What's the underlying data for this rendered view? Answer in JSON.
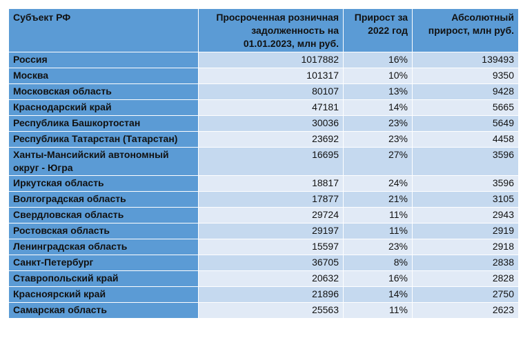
{
  "headers": {
    "region": "Субъект РФ",
    "debt": "Просроченная розничная задолженность на 01.01.2023, млн руб.",
    "growth_pct": "Прирост за 2022 год",
    "growth_abs": "Абсолютный прирост, млн руб."
  },
  "rows": [
    {
      "region": "Россия",
      "debt": "1017882",
      "growth_pct": "16%",
      "growth_abs": "139493"
    },
    {
      "region": "Москва",
      "debt": "101317",
      "growth_pct": "10%",
      "growth_abs": "9350"
    },
    {
      "region": "Московская область",
      "debt": "80107",
      "growth_pct": "13%",
      "growth_abs": "9428"
    },
    {
      "region": "Краснодарский край",
      "debt": "47181",
      "growth_pct": "14%",
      "growth_abs": "5665"
    },
    {
      "region": "Республика Башкортостан",
      "debt": "30036",
      "growth_pct": "23%",
      "growth_abs": "5649"
    },
    {
      "region": "Республика Татарстан  (Татарстан)",
      "debt": "23692",
      "growth_pct": "23%",
      "growth_abs": "4458"
    },
    {
      "region": "Ханты-Мансийский автономный округ - Югра",
      "debt": "16695",
      "growth_pct": "27%",
      "growth_abs": "3596"
    },
    {
      "region": "Иркутская область",
      "debt": "18817",
      "growth_pct": "24%",
      "growth_abs": "3596"
    },
    {
      "region": "Волгоградская область",
      "debt": "17877",
      "growth_pct": "21%",
      "growth_abs": "3105"
    },
    {
      "region": "Свердловская область",
      "debt": "29724",
      "growth_pct": "11%",
      "growth_abs": "2943"
    },
    {
      "region": "Ростовская область",
      "debt": "29197",
      "growth_pct": "11%",
      "growth_abs": "2919"
    },
    {
      "region": "Ленинградская область",
      "debt": "15597",
      "growth_pct": "23%",
      "growth_abs": "2918"
    },
    {
      "region": "Санкт-Петербург",
      "debt": "36705",
      "growth_pct": "8%",
      "growth_abs": "2838"
    },
    {
      "region": "Ставропольский край",
      "debt": "20632",
      "growth_pct": "16%",
      "growth_abs": "2828"
    },
    {
      "region": "Красноярский край",
      "debt": "21896",
      "growth_pct": "14%",
      "growth_abs": "2750"
    },
    {
      "region": "Самарская область",
      "debt": "25563",
      "growth_pct": "11%",
      "growth_abs": "2623"
    }
  ]
}
